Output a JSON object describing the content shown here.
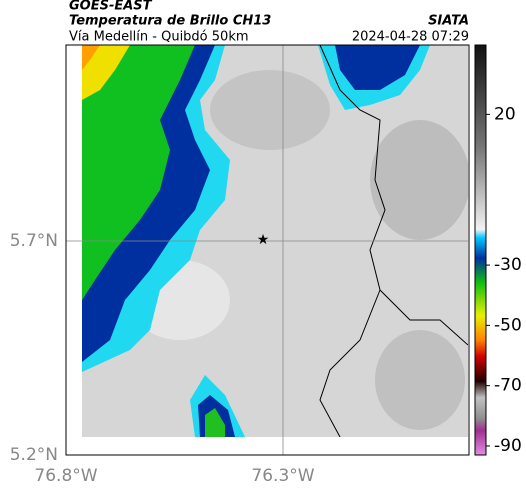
{
  "header": {
    "satellite": "GOES-EAST",
    "product": "Temperatura de Brillo CH13",
    "source": "SIATA",
    "route": "Vía Medellín - Quibdó 50km",
    "datetime": "2024-04-28 07:29"
  },
  "map": {
    "lat_labels": [
      "5.7°N",
      "5.2°N"
    ],
    "lon_labels": [
      "76.8°W",
      "76.3°W"
    ]
  },
  "colorbar": {
    "range": [
      -93,
      43
    ],
    "ticks": [
      20,
      -30,
      -50,
      -70,
      -90
    ]
  }
}
